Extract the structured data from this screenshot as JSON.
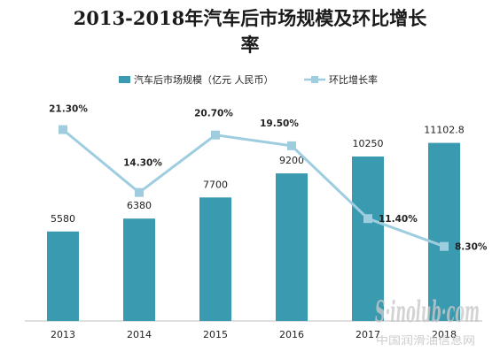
{
  "chart_data": {
    "type": "bar",
    "title_line1": "2013-2018年汽车后市场规模及环比增长",
    "title_line2": "率",
    "categories": [
      "2013",
      "2014",
      "2015",
      "2016",
      "2017",
      "2018"
    ],
    "series": [
      {
        "name": "汽车后市场规模（亿元 人民币）",
        "type": "bar",
        "axis": "left",
        "values": [
          5580,
          6380,
          7700,
          9200,
          10250,
          11102.8
        ],
        "labels": [
          "5580",
          "6380",
          "7700",
          "9200",
          "10250",
          "11102.8"
        ],
        "color": "#3a9bb0"
      },
      {
        "name": "环比增长率",
        "type": "line",
        "axis": "right",
        "values": [
          21.3,
          14.3,
          20.7,
          19.5,
          11.4,
          8.3
        ],
        "labels": [
          "21.30%",
          "14.30%",
          "20.70%",
          "19.50%",
          "11.40%",
          "8.30%"
        ],
        "color": "#9fcde0"
      }
    ],
    "ylim_left": [
      0,
      14000
    ],
    "ylim_right": [
      0,
      25
    ],
    "grid": false,
    "legend_position": "top"
  },
  "watermark": {
    "main": "S·inolub·com",
    "sub": "中国润滑油信息网"
  }
}
